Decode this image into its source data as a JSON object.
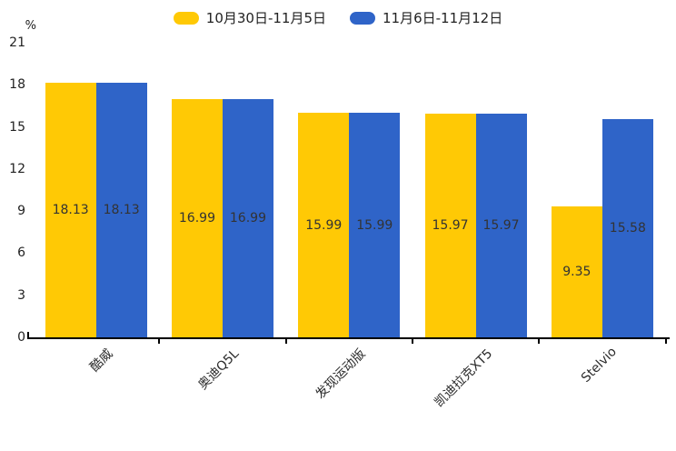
{
  "chart_data": {
    "type": "bar",
    "unit_label": "%",
    "categories": [
      "酷威",
      "奥迪Q5L",
      "发现运动版",
      "凯迪拉克XT5",
      "Stelvio"
    ],
    "series": [
      {
        "name": "10月30日-11月5日",
        "color": "#FFC905",
        "values": [
          18.13,
          16.99,
          15.99,
          15.97,
          9.35
        ]
      },
      {
        "name": "11月6日-11月12日",
        "color": "#2F64C8",
        "values": [
          18.13,
          16.99,
          15.99,
          15.97,
          15.58
        ]
      }
    ],
    "value_labels": [
      "18.13",
      "16.99",
      "15.99",
      "15.97",
      "9.35",
      "18.13",
      "16.99",
      "15.99",
      "15.97",
      "15.58"
    ],
    "ylim": [
      0,
      21
    ],
    "yticks": [
      0,
      3,
      6,
      9,
      12,
      15,
      18,
      21
    ],
    "grid": false,
    "legend_position": "top",
    "axis_color": "#000000",
    "label_color": "#333333"
  }
}
